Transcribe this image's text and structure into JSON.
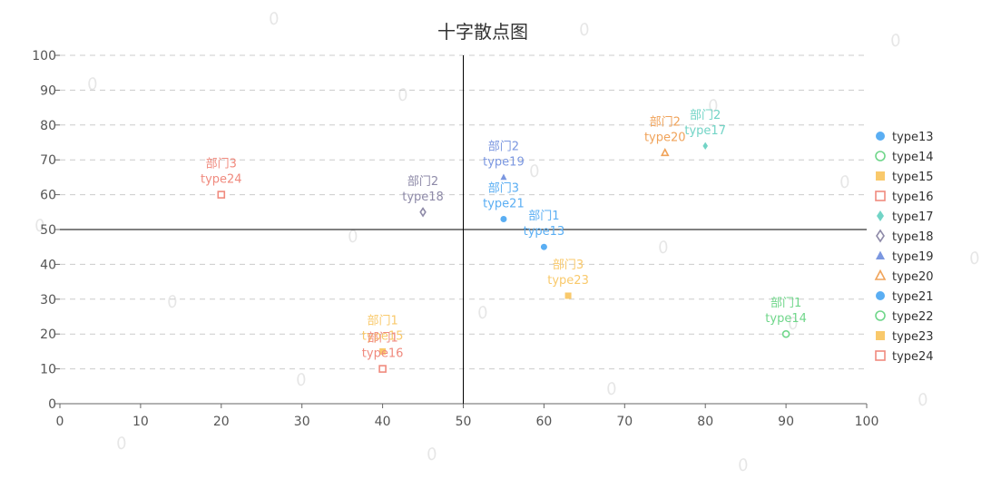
{
  "chart_data": {
    "type": "scatter",
    "title": "十字散点图",
    "xlim": [
      0,
      100
    ],
    "ylim": [
      0,
      100
    ],
    "x_ticks": [
      0,
      10,
      20,
      30,
      40,
      50,
      60,
      70,
      80,
      90,
      100
    ],
    "y_ticks": [
      0,
      10,
      20,
      30,
      40,
      50,
      60,
      70,
      80,
      90,
      100
    ],
    "crosshair": {
      "x": 50,
      "y": 50
    },
    "grid": "horizontal dashed",
    "legend_position": "right",
    "watermark_text": "0",
    "series": [
      {
        "name": "type13",
        "symbol": "circle",
        "color": "#5aaef3",
        "points": [
          {
            "x": 60,
            "y": 45,
            "label": "部门1"
          }
        ]
      },
      {
        "name": "type14",
        "symbol": "empty-circle",
        "color": "#6fd68a",
        "points": [
          {
            "x": 90,
            "y": 20,
            "label": "部门1"
          }
        ]
      },
      {
        "name": "type15",
        "symbol": "rect",
        "color": "#f9c96b",
        "points": [
          {
            "x": 40,
            "y": 15,
            "label": "部门1"
          }
        ]
      },
      {
        "name": "type16",
        "symbol": "empty-rect",
        "color": "#f08a7e",
        "points": [
          {
            "x": 40,
            "y": 10,
            "label": "部门1"
          }
        ]
      },
      {
        "name": "type17",
        "symbol": "diamond",
        "color": "#72d4c6",
        "points": [
          {
            "x": 80,
            "y": 74,
            "label": "部门2"
          }
        ]
      },
      {
        "name": "type18",
        "symbol": "empty-diamond",
        "color": "#8e8aa8",
        "points": [
          {
            "x": 45,
            "y": 55,
            "label": "部门2"
          }
        ]
      },
      {
        "name": "type19",
        "symbol": "triangle",
        "color": "#7b97e0",
        "points": [
          {
            "x": 55,
            "y": 65,
            "label": "部门2"
          }
        ]
      },
      {
        "name": "type20",
        "symbol": "empty-triangle",
        "color": "#f0a35a",
        "points": [
          {
            "x": 75,
            "y": 72,
            "label": "部门2"
          }
        ]
      },
      {
        "name": "type21",
        "symbol": "circle",
        "color": "#5aaef3",
        "points": [
          {
            "x": 55,
            "y": 53,
            "label": "部门3"
          }
        ]
      },
      {
        "name": "type22",
        "symbol": "empty-circle",
        "color": "#6fd68a",
        "points": []
      },
      {
        "name": "type23",
        "symbol": "rect",
        "color": "#f9c96b",
        "points": [
          {
            "x": 63,
            "y": 31,
            "label": "部门3"
          }
        ]
      },
      {
        "name": "type24",
        "symbol": "empty-rect",
        "color": "#f08a7e",
        "points": [
          {
            "x": 20,
            "y": 60,
            "label": "部门3"
          }
        ]
      }
    ]
  }
}
